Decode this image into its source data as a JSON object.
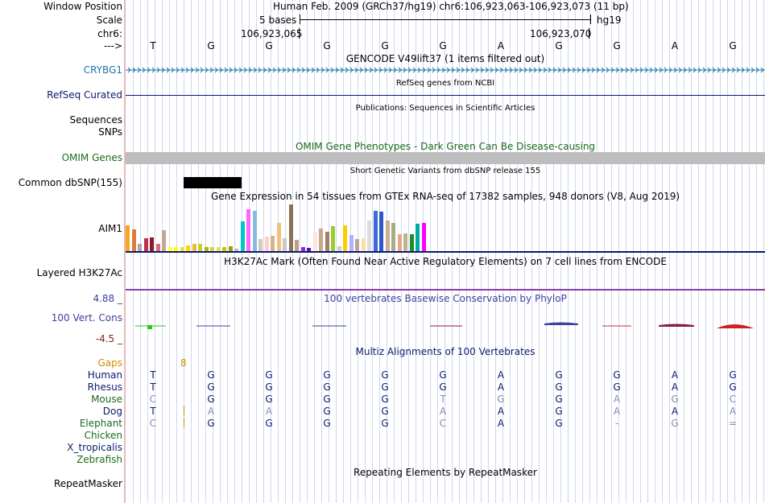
{
  "colors": {
    "crybg1": "#1976a8",
    "navy": "#0a1a6e",
    "omim_green": "#1a6b1a",
    "encode_purple": "#8a3aa8",
    "cons_blue": "#4040a0",
    "cons_neg": "#8b1a1a",
    "gaps": "#d08a00",
    "grid": "#cfd6f0"
  },
  "header": {
    "window_position_label": "Window Position",
    "assembly_range": "Human Feb. 2009 (GRCh37/hg19)   chr6:106,923,063-106,923,073 (11 bp)",
    "scale_label": "Scale",
    "scale_bases": "5 bases",
    "scale_db": "hg19",
    "chrom_label": "chr6:",
    "coord_left": "106,923,065",
    "coord_right": "106,923,070",
    "strand_label": "--->",
    "bases": [
      "T",
      "G",
      "G",
      "G",
      "G",
      "G",
      "A",
      "G",
      "G",
      "A",
      "G"
    ]
  },
  "tracks": {
    "gencode_title": "GENCODE V49lift37 (1 items filtered out)",
    "gene_label": "CRYBG1",
    "refseq_title": "RefSeq genes from NCBI",
    "refseq_label": "RefSeq Curated",
    "pubs_title": "Publications: Sequences in Scientific Articles",
    "pubs_label_1": "Sequences",
    "pubs_label_2": "SNPs",
    "omim_title": "OMIM Gene Phenotypes - Dark Green Can Be Disease-causing",
    "omim_label": "OMIM Genes",
    "dbsnp_title": "Short Genetic Variants from dbSNP release 155",
    "dbsnp_label": "Common dbSNP(155)",
    "gtex_title": "Gene Expression in 54 tissues from GTEx RNA-seq of 17382 samples, 948 donors (V8, Aug 2019)",
    "gtex_label": "AIM1",
    "h3k27_title": "H3K27Ac Mark (Often Found Near Active Regulatory Elements) on 7 cell lines from ENCODE",
    "h3k27_label": "Layered H3K27Ac",
    "cons_max": "4.88 _",
    "cons_min": "-4.5 _",
    "cons_title": "100 vertebrates Basewise Conservation by PhyloP",
    "cons_label": "100 Vert. Cons",
    "multiz_title": "Multiz Alignments of 100 Vertebrates",
    "gaps_label": "Gaps",
    "gaps_value": "8",
    "rmsk_title": "Repeating Elements by RepeatMasker",
    "rmsk_label": "RepeatMasker"
  },
  "gtex_values": [
    0.56,
    0.47,
    0.16,
    0.28,
    0.3,
    0.16,
    0.44,
    0.08,
    0.08,
    0.08,
    0.12,
    0.16,
    0.16,
    0.08,
    0.08,
    0.08,
    0.08,
    0.1,
    0.06,
    0.64,
    0.89,
    0.86,
    0.25,
    0.31,
    0.33,
    0.6,
    0.28,
    1.0,
    0.24,
    0.08,
    0.07,
    0.41,
    0.48,
    0.42,
    0.54,
    0.1,
    0.56,
    0.34,
    0.25,
    0.28,
    0.66,
    0.86,
    0.84,
    0.66,
    0.61,
    0.37,
    0.38,
    0.37,
    0.59,
    0.61
  ],
  "gtex_colors": [
    "#f5a623",
    "#e07b39",
    "#a8a8a8",
    "#c0304c",
    "#8b1a2a",
    "#d47070",
    "#c4a890",
    "#ffff33",
    "#ffff00",
    "#e6e633",
    "#ffd700",
    "#e6c033",
    "#cccc33",
    "#b3b300",
    "#d6d633",
    "#e0e060",
    "#c8c800",
    "#a0a000",
    "#bbbbbb",
    "#00c8c8",
    "#ff66ff",
    "#88bbdd",
    "#d8c8b8",
    "#ffcccc",
    "#d2b48c",
    "#f0c080",
    "#c8c8c8",
    "#8b7355",
    "#bba08a",
    "#8a2be2",
    "#6a0dad",
    "#ffe4e1",
    "#c8a888",
    "#a0806a",
    "#9acd32",
    "#cccccc",
    "#ffcc00",
    "#b0b0ff",
    "#b8a898",
    "#ffddaa",
    "#dddddd",
    "#3a6ad8",
    "#2a58c8",
    "#c8b090",
    "#aaaa88",
    "#e8a888",
    "#c0b098",
    "#228b22",
    "#00aaaa",
    "#ff00ff"
  ],
  "multiz": {
    "species": [
      {
        "name": "Human",
        "color": "#0a1a6e"
      },
      {
        "name": "Rhesus",
        "color": "#0a1a6e"
      },
      {
        "name": "Mouse",
        "color": "#1a6b1a"
      },
      {
        "name": "Dog",
        "color": "#0a1a6e"
      },
      {
        "name": "Elephant",
        "color": "#1a6b1a"
      },
      {
        "name": "Chicken",
        "color": "#1a6b1a"
      },
      {
        "name": "X_tropicalis",
        "color": "#0a1a6e"
      },
      {
        "name": "Zebrafish",
        "color": "#1a6b1a"
      }
    ],
    "rows": [
      [
        "T",
        "G",
        "G",
        "G",
        "G",
        "G",
        "A",
        "G",
        "G",
        "A",
        "G"
      ],
      [
        "T",
        "G",
        "G",
        "G",
        "G",
        "G",
        "A",
        "G",
        "G",
        "A",
        "G"
      ],
      [
        "C",
        "G",
        "G",
        "G",
        "G",
        "T",
        "G",
        "G",
        "A",
        "G",
        "C"
      ],
      [
        "T",
        "A",
        "A",
        "G",
        "G",
        "A",
        "A",
        "G",
        "A",
        "A",
        "A"
      ],
      [
        "C",
        "G",
        "G",
        "G",
        "G",
        "C",
        "A",
        "G",
        "-",
        "G",
        "="
      ]
    ],
    "row_dim": [
      [
        false,
        false,
        false,
        false,
        false,
        false,
        false,
        false,
        false,
        false,
        false
      ],
      [
        false,
        false,
        false,
        false,
        false,
        false,
        false,
        false,
        false,
        false,
        false
      ],
      [
        true,
        false,
        false,
        false,
        false,
        true,
        true,
        false,
        true,
        true,
        true
      ],
      [
        false,
        true,
        true,
        false,
        false,
        true,
        false,
        false,
        true,
        false,
        true
      ],
      [
        true,
        false,
        false,
        false,
        false,
        true,
        false,
        false,
        true,
        true,
        true
      ]
    ]
  }
}
